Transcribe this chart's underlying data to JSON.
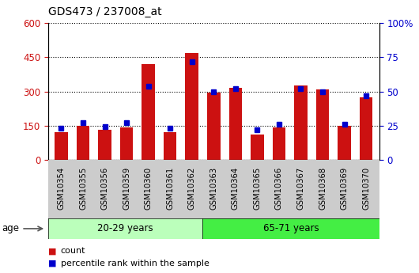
{
  "title": "GDS473 / 237008_at",
  "samples": [
    "GSM10354",
    "GSM10355",
    "GSM10356",
    "GSM10359",
    "GSM10360",
    "GSM10361",
    "GSM10362",
    "GSM10363",
    "GSM10364",
    "GSM10365",
    "GSM10366",
    "GSM10367",
    "GSM10368",
    "GSM10369",
    "GSM10370"
  ],
  "counts": [
    120,
    148,
    132,
    143,
    420,
    120,
    470,
    295,
    315,
    110,
    143,
    325,
    310,
    148,
    275
  ],
  "percentile_ranks": [
    23,
    27,
    24,
    27,
    54,
    23,
    72,
    50,
    52,
    22,
    26,
    52,
    50,
    26,
    47
  ],
  "group1_label": "20-29 years",
  "group2_label": "65-71 years",
  "group1_count": 7,
  "group2_count": 8,
  "group1_color": "#bbffbb",
  "group2_color": "#44ee44",
  "bar_color": "#cc1111",
  "dot_color": "#0000cc",
  "bg_color": "#cccccc",
  "left_ylim": [
    0,
    600
  ],
  "right_ylim": [
    0,
    100
  ],
  "left_yticks": [
    0,
    150,
    300,
    450,
    600
  ],
  "right_yticks": [
    0,
    25,
    50,
    75,
    100
  ],
  "right_yticklabels": [
    "0",
    "25",
    "50",
    "75",
    "100%"
  ],
  "tick_label_color_left": "#cc1111",
  "tick_label_color_right": "#0000cc"
}
